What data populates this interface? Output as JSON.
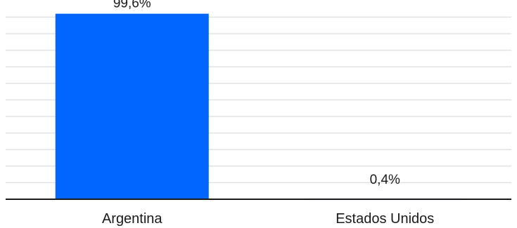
{
  "chart_data": {
    "type": "bar",
    "categories": [
      "Argentina",
      "Estados Unidos"
    ],
    "values": [
      99.6,
      0.4
    ],
    "data_labels": [
      "99,6%",
      "0,4%"
    ],
    "title": "",
    "xlabel": "",
    "ylabel": "",
    "ylim": [
      0,
      100
    ],
    "grid": true,
    "legend": "none",
    "colors": {
      "bar": "#0066ff",
      "grid": "#e2e2e2",
      "axis": "#1a1a1a",
      "text": "#1a1a1a"
    }
  }
}
